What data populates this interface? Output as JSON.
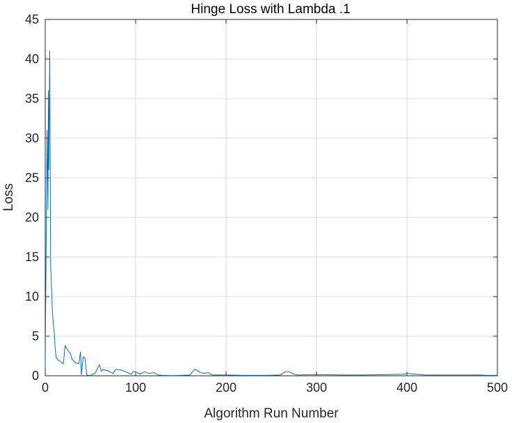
{
  "chart_data": {
    "type": "line",
    "title": "Hinge Loss with Lambda .1",
    "xlabel": "Algorithm Run Number",
    "ylabel": "Loss",
    "xlim": [
      0,
      500
    ],
    "ylim": [
      0,
      45
    ],
    "xticks": [
      0,
      100,
      200,
      300,
      400,
      500
    ],
    "yticks": [
      0,
      5,
      10,
      15,
      20,
      25,
      30,
      35,
      40,
      45
    ],
    "grid": true,
    "legend": "none",
    "colors": {
      "line": "#0072BD",
      "grid": "#dcdcdc",
      "axes": "#262626"
    },
    "series": [
      {
        "x": [
          0,
          1,
          2,
          3,
          3.5,
          4,
          5,
          5.5,
          6,
          7,
          8,
          9,
          10,
          11,
          12,
          14,
          17,
          20,
          22,
          25,
          28,
          30,
          33,
          37,
          39,
          40,
          42,
          44,
          46,
          48,
          50,
          55,
          60,
          62,
          64,
          70,
          75,
          78,
          85,
          95,
          98,
          105,
          110,
          115,
          120,
          125,
          130,
          140,
          150,
          160,
          165,
          168,
          170,
          175,
          180,
          185,
          200,
          220,
          240,
          260,
          265,
          270,
          275,
          280,
          300,
          330,
          350,
          380,
          395,
          400,
          420,
          450,
          480,
          490,
          500
        ],
        "y": [
          1,
          16,
          31,
          21,
          36,
          26,
          41,
          27,
          14,
          11,
          8,
          6.5,
          5.5,
          3.5,
          2.3,
          2.0,
          1.8,
          1.5,
          3.8,
          3.2,
          2.8,
          2.0,
          1.7,
          1.5,
          3.0,
          0.1,
          2.4,
          2.2,
          0.1,
          0.05,
          0.05,
          0.3,
          1.4,
          0.6,
          0.8,
          0.6,
          0.3,
          0.8,
          0.7,
          0.2,
          0.6,
          0.2,
          0.5,
          0.3,
          0.4,
          0.1,
          0.05,
          0.02,
          0.05,
          0.1,
          0.8,
          0.7,
          0.5,
          0.3,
          0.4,
          0.1,
          0.1,
          0.05,
          0.05,
          0.1,
          0.5,
          0.5,
          0.2,
          0.1,
          0.15,
          0.1,
          0.1,
          0.15,
          0.2,
          0.3,
          0.1,
          0.1,
          0.1,
          0.05,
          0.05
        ]
      }
    ]
  }
}
